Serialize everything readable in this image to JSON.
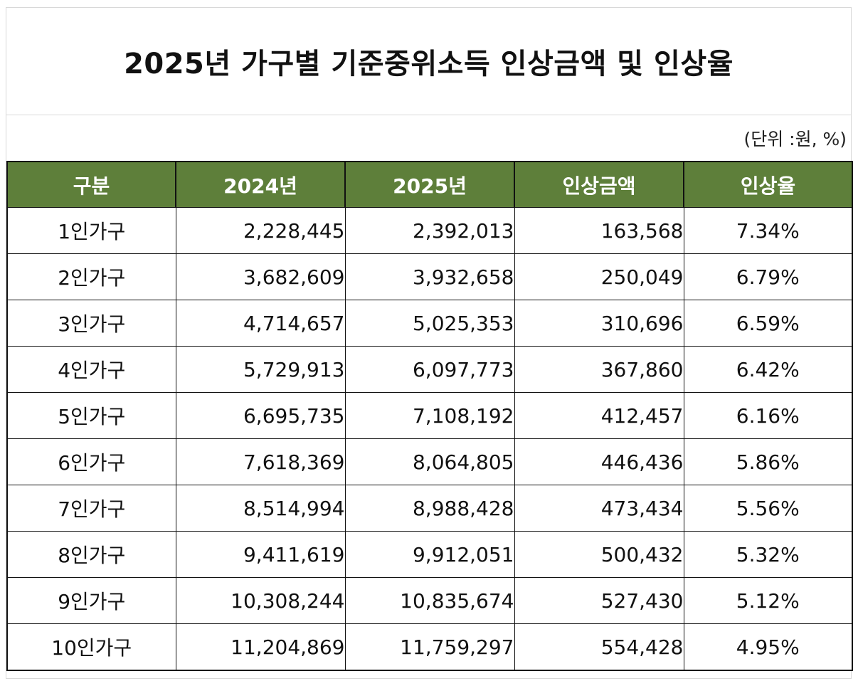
{
  "title": "2025년 가구별 기준중위소득 인상금액 및 인상율",
  "unit_note": "(단위 :원, %)",
  "colors": {
    "header_bg": "#5e7f3a",
    "header_text": "#ffffff",
    "border": "#111111"
  },
  "table": {
    "headers": [
      "구분",
      "2024년",
      "2025년",
      "인상금액",
      "인상율"
    ],
    "rows": [
      {
        "category": "1인가구",
        "y2024": "2,228,445",
        "y2025": "2,392,013",
        "increase": "163,568",
        "rate": "7.34%"
      },
      {
        "category": "2인가구",
        "y2024": "3,682,609",
        "y2025": "3,932,658",
        "increase": "250,049",
        "rate": "6.79%"
      },
      {
        "category": "3인가구",
        "y2024": "4,714,657",
        "y2025": "5,025,353",
        "increase": "310,696",
        "rate": "6.59%"
      },
      {
        "category": "4인가구",
        "y2024": "5,729,913",
        "y2025": "6,097,773",
        "increase": "367,860",
        "rate": "6.42%"
      },
      {
        "category": "5인가구",
        "y2024": "6,695,735",
        "y2025": "7,108,192",
        "increase": "412,457",
        "rate": "6.16%"
      },
      {
        "category": "6인가구",
        "y2024": "7,618,369",
        "y2025": "8,064,805",
        "increase": "446,436",
        "rate": "5.86%"
      },
      {
        "category": "7인가구",
        "y2024": "8,514,994",
        "y2025": "8,988,428",
        "increase": "473,434",
        "rate": "5.56%"
      },
      {
        "category": "8인가구",
        "y2024": "9,411,619",
        "y2025": "9,912,051",
        "increase": "500,432",
        "rate": "5.32%"
      },
      {
        "category": "9인가구",
        "y2024": "10,308,244",
        "y2025": "10,835,674",
        "increase": "527,430",
        "rate": "5.12%"
      },
      {
        "category": "10인가구",
        "y2024": "11,204,869",
        "y2025": "11,759,297",
        "increase": "554,428",
        "rate": "4.95%"
      }
    ]
  }
}
